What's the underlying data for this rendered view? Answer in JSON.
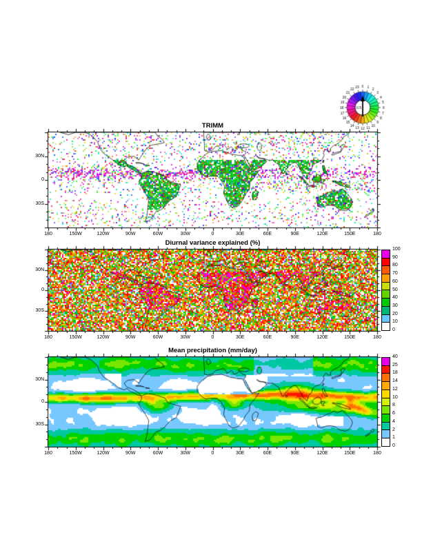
{
  "page": {
    "background": "#ffffff"
  },
  "clock_legend": {
    "hours": [
      "0",
      "1",
      "2",
      "3",
      "4",
      "5",
      "6",
      "7",
      "8",
      "9",
      "10",
      "11",
      "12",
      "13",
      "14",
      "15",
      "16",
      "17",
      "18",
      "19",
      "20",
      "21",
      "22",
      "23"
    ],
    "center_label": "0.5",
    "meaning": "hour-of-day color wheel legend with upward arrow"
  },
  "panels": [
    {
      "title": "TRIMM",
      "x_ticks": [
        "180",
        "150W",
        "120W",
        "90W",
        "60W",
        "30W",
        "0",
        "30E",
        "60E",
        "90E",
        "120E",
        "150E",
        "180"
      ],
      "y_ticks": [
        "30N",
        "0",
        "30S"
      ]
    },
    {
      "title": "Diurnal variance explained (%)",
      "x_ticks": [
        "180",
        "150W",
        "120W",
        "90W",
        "60W",
        "30W",
        "0",
        "30E",
        "60E",
        "90E",
        "120E",
        "150E",
        "180"
      ],
      "y_ticks": [
        "30N",
        "0",
        "30S"
      ],
      "colorbar": {
        "labels": [
          "100",
          "90",
          "80",
          "70",
          "60",
          "50",
          "40",
          "30",
          "20",
          "10",
          "0"
        ],
        "colors": [
          "#e800e8",
          "#ff0000",
          "#ff5a00",
          "#ff9c00",
          "#c8dc00",
          "#64d200",
          "#00c800",
          "#00b478",
          "#64c8ff",
          "#ffffff"
        ]
      }
    },
    {
      "title": "Mean precipitation (mm/day)",
      "x_ticks": [
        "180",
        "150W",
        "120W",
        "90W",
        "60W",
        "30W",
        "0",
        "30E",
        "60E",
        "90E",
        "120E",
        "150E",
        "180"
      ],
      "y_ticks": [
        "30N",
        "0",
        "30S"
      ],
      "colorbar": {
        "labels": [
          "40",
          "25",
          "18",
          "14",
          "12",
          "10",
          "8",
          "6",
          "4",
          "2",
          "1",
          "0"
        ],
        "colors": [
          "#e800e8",
          "#ff1400",
          "#ff6e00",
          "#ffaa00",
          "#ffd800",
          "#d2f000",
          "#78e600",
          "#00d200",
          "#00c8a0",
          "#78c8ff",
          "#ffffff"
        ]
      }
    }
  ],
  "chart_data": [
    {
      "type": "heatmap",
      "title": "TRIMM",
      "x_tick_labels": [
        "180",
        "150W",
        "120W",
        "90W",
        "60W",
        "30W",
        "0",
        "30E",
        "60E",
        "90E",
        "120E",
        "150E",
        "180"
      ],
      "y_tick_labels": [
        "30N",
        "0",
        "30S"
      ],
      "lon_range": [
        -180,
        180
      ],
      "lat_range_approx": [
        -60,
        60
      ],
      "value": "local hour (0-23) of diurnal maximum, colored by the circular hour-wheel legend at top right",
      "legend": {
        "kind": "circular-hour-wheel",
        "hour_labels": [
          0,
          1,
          2,
          3,
          4,
          5,
          6,
          7,
          8,
          9,
          10,
          11,
          12,
          13,
          14,
          15,
          16,
          17,
          18,
          19,
          20,
          21,
          22,
          23
        ],
        "arrow_scale_label": "0.5",
        "legend_position": "top-right"
      },
      "notable_features": "coherent dark-green phase regions over tropical land (Amazon, central/southern Africa, Maritime Continent, Australia); purple-magenta speckle bands along the oceanic ITCZ in the east Pacific and Atlantic; sparse multicolor speckle over subtropical oceans"
    },
    {
      "type": "heatmap",
      "title": "Diurnal variance explained (%)",
      "x_tick_labels": [
        "180",
        "150W",
        "120W",
        "90W",
        "60W",
        "30W",
        "0",
        "30E",
        "60E",
        "90E",
        "120E",
        "150E",
        "180"
      ],
      "y_tick_labels": [
        "30N",
        "0",
        "30S"
      ],
      "lon_range": [
        -180,
        180
      ],
      "lat_range_approx": [
        -60,
        60
      ],
      "levels": [
        0,
        10,
        20,
        30,
        40,
        50,
        60,
        70,
        80,
        90,
        100
      ],
      "colorbar_colors_top_to_bottom": [
        "#e800e8",
        "#ff0000",
        "#ff5a00",
        "#ff9c00",
        "#c8dc00",
        "#64d200",
        "#00c800",
        "#00b478",
        "#64c8ff",
        "#ffffff"
      ],
      "legend_position": "right",
      "notable_features": "very noisy speckled field dominated by red/orange (60-90%) everywhere; magenta clusters (>90%) over tropical continents (South America, Africa, Maritime Continent); scattered white/blue low values"
    },
    {
      "type": "heatmap",
      "title": "Mean precipitation (mm/day)",
      "x_tick_labels": [
        "180",
        "150W",
        "120W",
        "90W",
        "60W",
        "30W",
        "0",
        "30E",
        "60E",
        "90E",
        "120E",
        "150E",
        "180"
      ],
      "y_tick_labels": [
        "30N",
        "0",
        "30S"
      ],
      "lon_range": [
        -180,
        180
      ],
      "lat_range_approx": [
        -60,
        60
      ],
      "levels": [
        0,
        1,
        2,
        4,
        6,
        8,
        10,
        12,
        14,
        18,
        25,
        40
      ],
      "colorbar_colors_top_to_bottom": [
        "#e800e8",
        "#ff1400",
        "#ff6e00",
        "#ffaa00",
        "#ffd800",
        "#d2f000",
        "#78e600",
        "#00d200",
        "#00c8a0",
        "#78c8ff",
        "#ffffff"
      ],
      "legend_position": "right",
      "notable_features": "smooth field: heavy rain (red/magenta, >18 mm/day) along the ITCZ, SPCZ, Maritime Continent, Amazon and Congo; green/yellow midlatitude storm tracks; dry white/pale-blue subtropical eastern oceans, Sahara and Middle East"
    }
  ]
}
